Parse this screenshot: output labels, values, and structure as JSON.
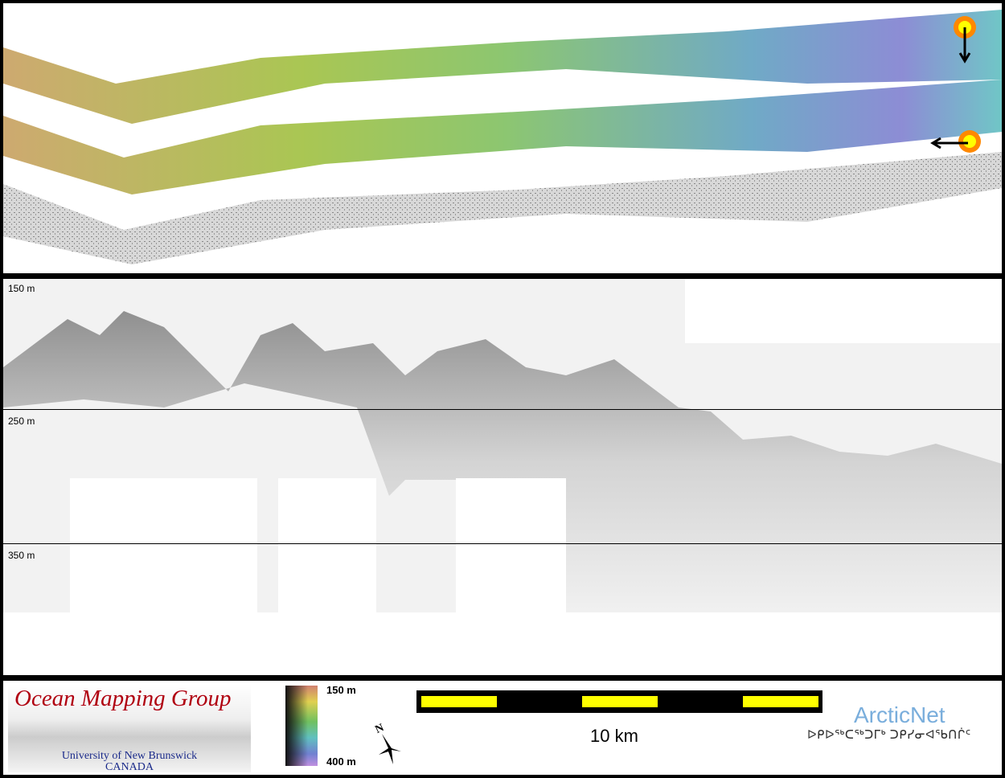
{
  "bathymetry_panel": {
    "swath_colors": [
      "#c8a060",
      "#a0c040",
      "#70c070",
      "#60b0c0",
      "#8080d0",
      "#b090e0"
    ],
    "backscatter_color": "#b0b0b0",
    "markers": [
      "sun-marker-icon",
      "arrow-down-icon",
      "sun-marker-icon",
      "arrow-left-icon"
    ]
  },
  "profile_panel": {
    "depth_labels": [
      "150 m",
      "250 m",
      "350 m"
    ]
  },
  "legend": {
    "logo_title": "Ocean Mapping Group",
    "logo_line1": "University of New Brunswick",
    "logo_line2": "CANADA",
    "colorbar_top": "150 m",
    "colorbar_bottom": "400 m",
    "north_label": "N",
    "scale_label": "10 km",
    "scale_colors": [
      "#ffff00",
      "#000000"
    ],
    "partner_name": "ArcticNet",
    "partner_name_inuktitut": "ᐅᑭᐅᖅᑕᖅᑐᒥᒃ ᑐᑭᓯᓂᐊᖃᑎᒌᑦ"
  }
}
